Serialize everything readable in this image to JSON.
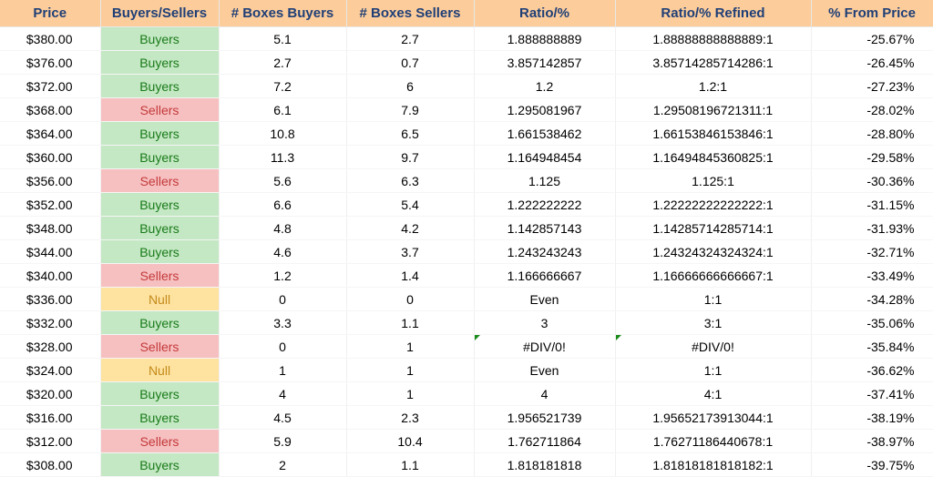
{
  "colors": {
    "header_bg": "#fccc9a",
    "header_text": "#1f3f77",
    "buyers_bg": "#c3e8c3",
    "buyers_text": "#1a7a1a",
    "sellers_bg": "#f6bfc0",
    "sellers_text": "#c43a3a",
    "null_bg": "#fde2a0",
    "null_text": "#c48a1a"
  },
  "columns": [
    "Price",
    "Buyers/Sellers",
    "# Boxes Buyers",
    "# Boxes Sellers",
    "Ratio/%",
    "Ratio/% Refined",
    "% From Price"
  ],
  "status_styles": {
    "Buyers": {
      "bg": "#c3e8c3",
      "fg": "#1a7a1a"
    },
    "Sellers": {
      "bg": "#f6bfc0",
      "fg": "#c43a3a"
    },
    "Null": {
      "bg": "#fde2a0",
      "fg": "#c48a1a"
    }
  },
  "rows": [
    {
      "price": "$380.00",
      "status": "Buyers",
      "bbuy": "5.1",
      "bsell": "2.7",
      "ratio": "1.888888889",
      "refined": "1.88888888888889:1",
      "pct": "-25.67%"
    },
    {
      "price": "$376.00",
      "status": "Buyers",
      "bbuy": "2.7",
      "bsell": "0.7",
      "ratio": "3.857142857",
      "refined": "3.85714285714286:1",
      "pct": "-26.45%"
    },
    {
      "price": "$372.00",
      "status": "Buyers",
      "bbuy": "7.2",
      "bsell": "6",
      "ratio": "1.2",
      "refined": "1.2:1",
      "pct": "-27.23%"
    },
    {
      "price": "$368.00",
      "status": "Sellers",
      "bbuy": "6.1",
      "bsell": "7.9",
      "ratio": "1.295081967",
      "refined": "1.29508196721311:1",
      "pct": "-28.02%"
    },
    {
      "price": "$364.00",
      "status": "Buyers",
      "bbuy": "10.8",
      "bsell": "6.5",
      "ratio": "1.661538462",
      "refined": "1.66153846153846:1",
      "pct": "-28.80%"
    },
    {
      "price": "$360.00",
      "status": "Buyers",
      "bbuy": "11.3",
      "bsell": "9.7",
      "ratio": "1.164948454",
      "refined": "1.16494845360825:1",
      "pct": "-29.58%"
    },
    {
      "price": "$356.00",
      "status": "Sellers",
      "bbuy": "5.6",
      "bsell": "6.3",
      "ratio": "1.125",
      "refined": "1.125:1",
      "pct": "-30.36%"
    },
    {
      "price": "$352.00",
      "status": "Buyers",
      "bbuy": "6.6",
      "bsell": "5.4",
      "ratio": "1.222222222",
      "refined": "1.22222222222222:1",
      "pct": "-31.15%"
    },
    {
      "price": "$348.00",
      "status": "Buyers",
      "bbuy": "4.8",
      "bsell": "4.2",
      "ratio": "1.142857143",
      "refined": "1.14285714285714:1",
      "pct": "-31.93%"
    },
    {
      "price": "$344.00",
      "status": "Buyers",
      "bbuy": "4.6",
      "bsell": "3.7",
      "ratio": "1.243243243",
      "refined": "1.24324324324324:1",
      "pct": "-32.71%"
    },
    {
      "price": "$340.00",
      "status": "Sellers",
      "bbuy": "1.2",
      "bsell": "1.4",
      "ratio": "1.166666667",
      "refined": "1.16666666666667:1",
      "pct": "-33.49%"
    },
    {
      "price": "$336.00",
      "status": "Null",
      "bbuy": "0",
      "bsell": "0",
      "ratio": "Even",
      "refined": "1:1",
      "pct": "-34.28%"
    },
    {
      "price": "$332.00",
      "status": "Buyers",
      "bbuy": "3.3",
      "bsell": "1.1",
      "ratio": "3",
      "refined": "3:1",
      "pct": "-35.06%"
    },
    {
      "price": "$328.00",
      "status": "Sellers",
      "bbuy": "0",
      "bsell": "1",
      "ratio": "#DIV/0!",
      "refined": "#DIV/0!",
      "pct": "-35.84%",
      "flag": true
    },
    {
      "price": "$324.00",
      "status": "Null",
      "bbuy": "1",
      "bsell": "1",
      "ratio": "Even",
      "refined": "1:1",
      "pct": "-36.62%"
    },
    {
      "price": "$320.00",
      "status": "Buyers",
      "bbuy": "4",
      "bsell": "1",
      "ratio": "4",
      "refined": "4:1",
      "pct": "-37.41%"
    },
    {
      "price": "$316.00",
      "status": "Buyers",
      "bbuy": "4.5",
      "bsell": "2.3",
      "ratio": "1.956521739",
      "refined": "1.95652173913044:1",
      "pct": "-38.19%"
    },
    {
      "price": "$312.00",
      "status": "Sellers",
      "bbuy": "5.9",
      "bsell": "10.4",
      "ratio": "1.762711864",
      "refined": "1.76271186440678:1",
      "pct": "-38.97%"
    },
    {
      "price": "$308.00",
      "status": "Buyers",
      "bbuy": "2",
      "bsell": "1.1",
      "ratio": "1.818181818",
      "refined": "1.81818181818182:1",
      "pct": "-39.75%"
    }
  ]
}
